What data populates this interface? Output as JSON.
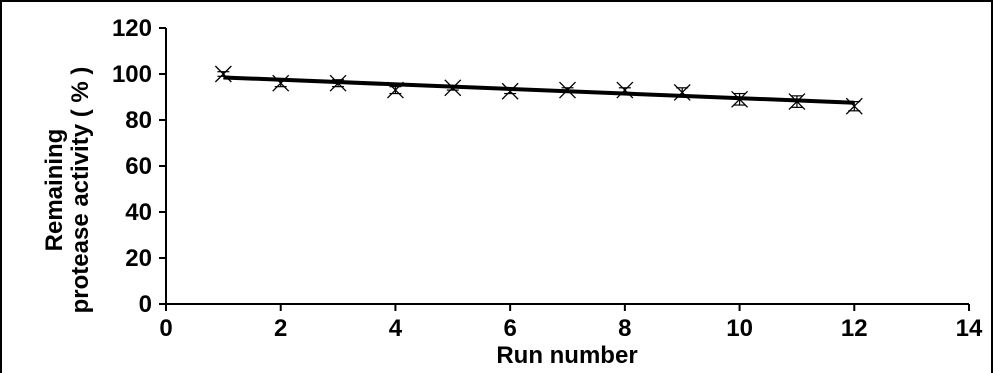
{
  "chart_data": {
    "type": "scatter",
    "xlabel": "Run number",
    "ylabel_lines": [
      "Remaining",
      "protease activity ( % )"
    ],
    "xlim": [
      0,
      14
    ],
    "ylim": [
      0,
      120
    ],
    "x_ticks": [
      0,
      2,
      4,
      6,
      8,
      10,
      12,
      14
    ],
    "y_ticks": [
      0,
      20,
      40,
      60,
      80,
      100,
      120
    ],
    "grid": false,
    "legend": "none",
    "series": [
      {
        "marker": "x",
        "x": [
          1,
          2,
          3,
          4,
          5,
          6,
          7,
          8,
          9,
          10,
          11,
          12
        ],
        "y": [
          100,
          96,
          96,
          93,
          94,
          92.5,
          93,
          93,
          92,
          89,
          88,
          86
        ],
        "error": [
          1,
          1.5,
          1.5,
          1.5,
          1,
          1,
          1,
          1,
          2,
          2.5,
          2.5,
          2
        ]
      }
    ],
    "trendline": {
      "type": "linear",
      "x": [
        1,
        12
      ],
      "y": [
        98.5,
        87.5
      ]
    },
    "colors": {
      "line": "#000000",
      "marker": "#000000"
    }
  }
}
